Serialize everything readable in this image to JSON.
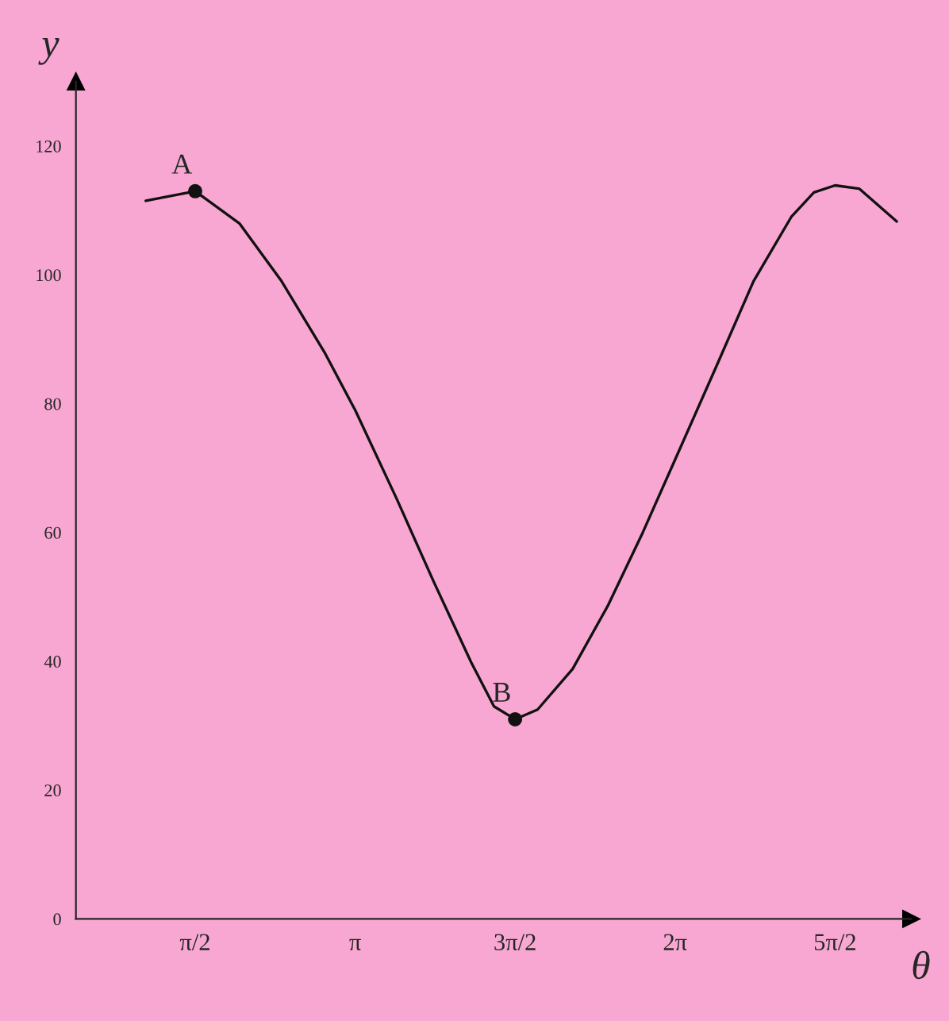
{
  "chart_data": {
    "type": "line",
    "xlabel": "θ",
    "ylabel": "y",
    "xlim": [
      0.4,
      8.6
    ],
    "ylim": [
      0,
      130
    ],
    "xticks": [
      {
        "value": 1.571,
        "label": "π/2"
      },
      {
        "value": 3.142,
        "label": "π"
      },
      {
        "value": 4.712,
        "label": "3π/2"
      },
      {
        "value": 6.283,
        "label": "2π"
      },
      {
        "value": 7.854,
        "label": "5π/2"
      }
    ],
    "yticks": [
      0,
      20,
      40,
      60,
      80,
      100,
      120
    ],
    "grid": false,
    "legend": false,
    "series": [
      {
        "color": "#111111",
        "marker": "none",
        "x": [
          1.086,
          1.571,
          2.005,
          2.42,
          2.84,
          3.142,
          3.542,
          3.912,
          4.282,
          4.505,
          4.712,
          4.933,
          5.277,
          5.622,
          5.966,
          6.283,
          6.683,
          7.053,
          7.424,
          7.646,
          7.854,
          8.09,
          8.46
        ],
        "values": [
          111.5,
          113,
          108,
          99,
          88,
          79,
          65.5,
          52.4,
          39.8,
          33,
          31,
          32.5,
          38.8,
          48.6,
          60,
          71.3,
          85.6,
          99,
          109,
          112.8,
          113.9,
          113.4,
          108.3
        ]
      },
      {
        "type": "scatter",
        "color": "#111111",
        "marker": "circle",
        "x": [
          1.571,
          4.712
        ],
        "values": [
          113,
          31
        ]
      }
    ],
    "annotations": [
      {
        "text": "A",
        "x": 1.571,
        "y": 113
      },
      {
        "text": "B",
        "x": 4.712,
        "y": 31
      }
    ]
  }
}
